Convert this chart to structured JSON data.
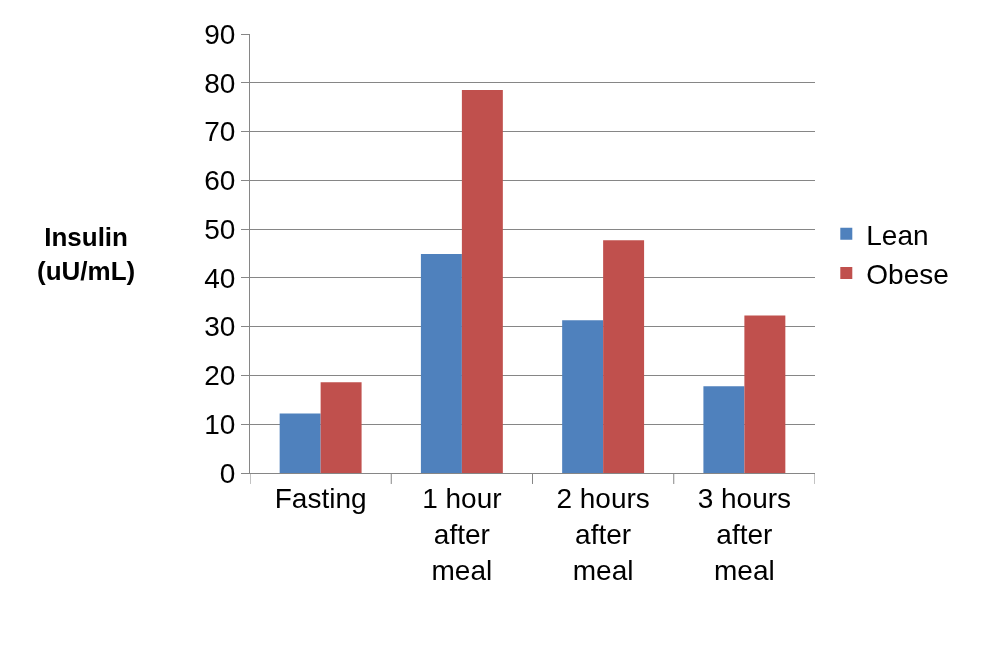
{
  "chart_data": {
    "type": "bar",
    "ylabel": "Insulin (uU/mL)",
    "categories": [
      "Fasting",
      "1 hour after meal",
      "2 hours after meal",
      "3 hours after meal"
    ],
    "series": [
      {
        "name": "Lean",
        "color": "#4f81bd",
        "values": [
          12.2,
          44.9,
          31.3,
          17.8
        ]
      },
      {
        "name": "Obese",
        "color": "#c0504d",
        "values": [
          18.6,
          78.5,
          47.7,
          32.3
        ]
      }
    ],
    "ylim": [
      0,
      90
    ],
    "yticks": [
      0,
      10,
      20,
      30,
      40,
      50,
      60,
      70,
      80,
      90
    ],
    "grid": "y",
    "legend": "right"
  }
}
